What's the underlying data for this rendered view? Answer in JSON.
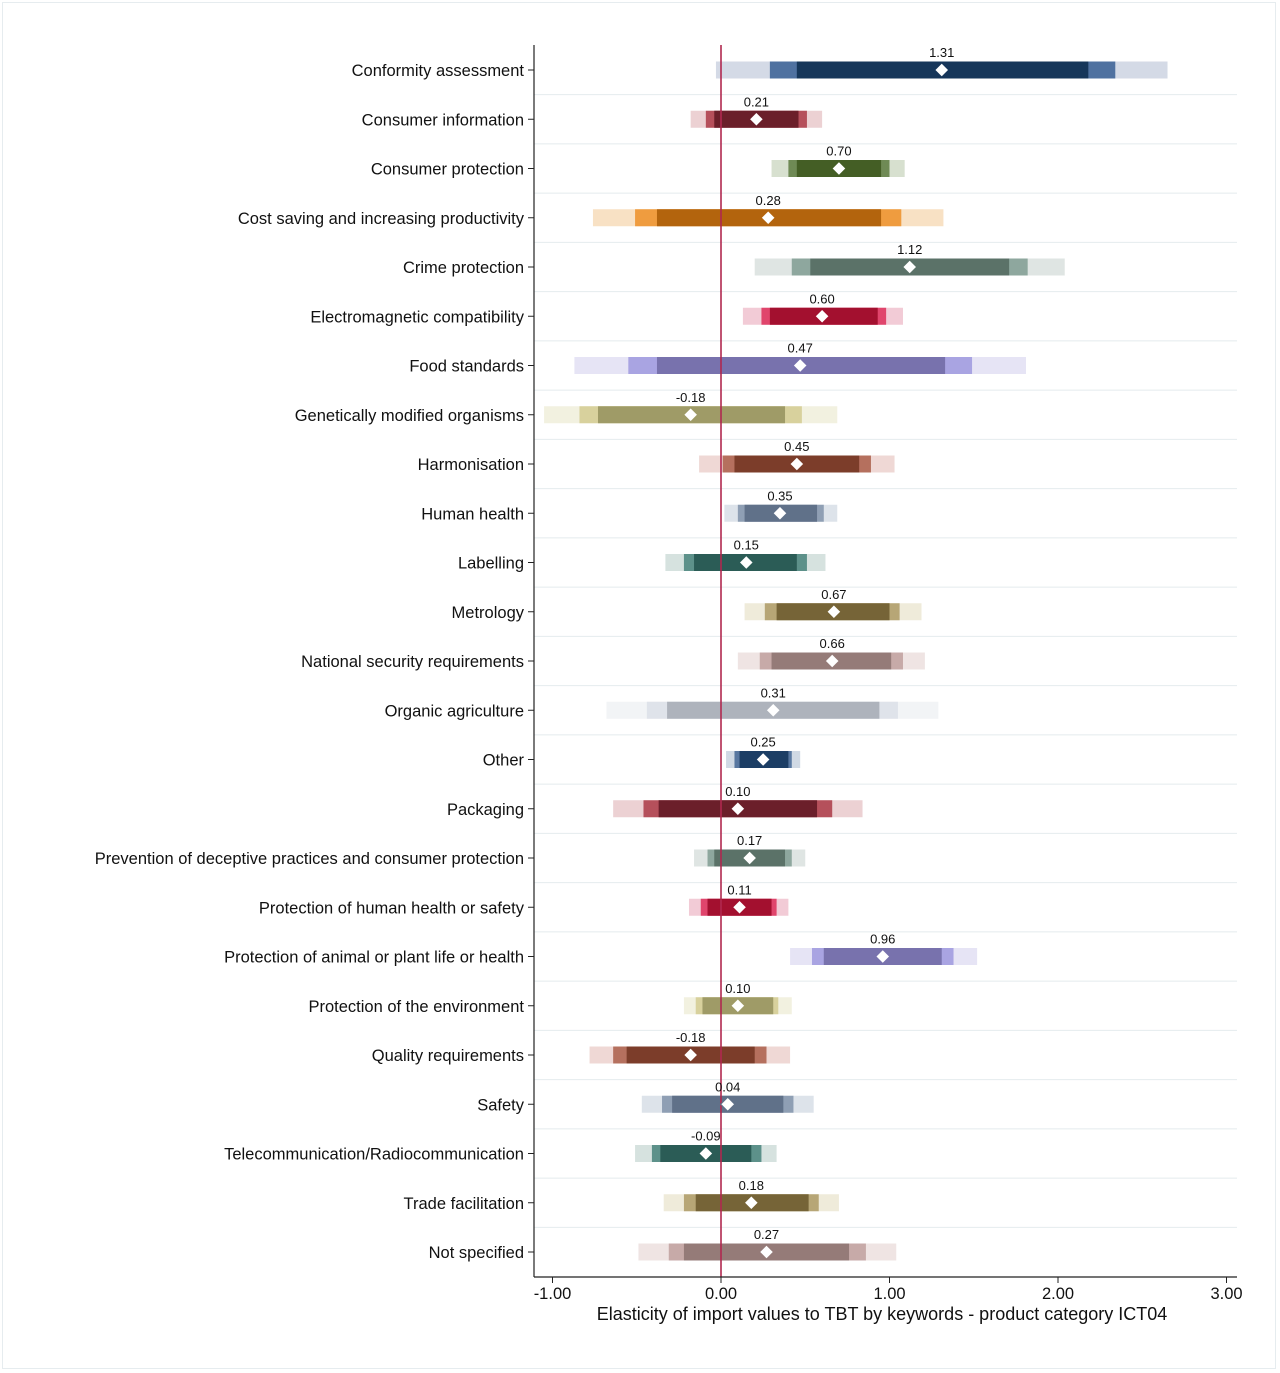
{
  "chart_data": {
    "type": "forest",
    "title": "",
    "xlabel": "Elasticity of import values to TBT by keywords - product category ICT04",
    "ylabel": "",
    "xlim": [
      -1.1,
      3.05
    ],
    "xticks": [
      -1.0,
      0.0,
      1.0,
      2.0,
      3.0
    ],
    "xtick_labels": [
      "-1.00",
      "0.00",
      "1.00",
      "2.00",
      "3.00"
    ],
    "reference_line": 0,
    "reference_line_color": "#b0284f",
    "interval_levels": [
      "outer",
      "middle",
      "inner"
    ],
    "rows": [
      {
        "label": "Conformity assessment",
        "value": 1.31,
        "value_label": "1.31",
        "outer": [
          -0.03,
          2.65
        ],
        "middle": [
          0.29,
          2.34
        ],
        "inner": [
          0.45,
          2.18
        ],
        "colors": [
          "#d4dae6",
          "#4f71a0",
          "#16365a"
        ]
      },
      {
        "label": "Consumer information",
        "value": 0.21,
        "value_label": "0.21",
        "outer": [
          -0.18,
          0.6
        ],
        "middle": [
          -0.09,
          0.51
        ],
        "inner": [
          -0.04,
          0.46
        ],
        "colors": [
          "#ecd1d3",
          "#b5505b",
          "#6b1f2a"
        ]
      },
      {
        "label": "Consumer protection",
        "value": 0.7,
        "value_label": "0.70",
        "outer": [
          0.3,
          1.09
        ],
        "middle": [
          0.4,
          1.0
        ],
        "inner": [
          0.45,
          0.95
        ],
        "colors": [
          "#d7e0cf",
          "#6f8a55",
          "#445e25"
        ]
      },
      {
        "label": "Cost saving and increasing productivity",
        "value": 0.28,
        "value_label": "0.28",
        "outer": [
          -0.76,
          1.32
        ],
        "middle": [
          -0.51,
          1.07
        ],
        "inner": [
          -0.38,
          0.95
        ],
        "colors": [
          "#f8e1c4",
          "#ef9c3f",
          "#b3640d"
        ]
      },
      {
        "label": "Crime protection",
        "value": 1.12,
        "value_label": "1.12",
        "outer": [
          0.2,
          2.04
        ],
        "middle": [
          0.42,
          1.82
        ],
        "inner": [
          0.53,
          1.71
        ],
        "colors": [
          "#dfe5e3",
          "#8ea79e",
          "#5b7268"
        ]
      },
      {
        "label": "Electromagnetic compatibility",
        "value": 0.6,
        "value_label": "0.60",
        "outer": [
          0.13,
          1.08
        ],
        "middle": [
          0.24,
          0.98
        ],
        "inner": [
          0.29,
          0.93
        ],
        "colors": [
          "#f2cbd6",
          "#e0456c",
          "#a3102f"
        ]
      },
      {
        "label": "Food standards",
        "value": 0.47,
        "value_label": "0.47",
        "outer": [
          -0.87,
          1.81
        ],
        "middle": [
          -0.55,
          1.49
        ],
        "inner": [
          -0.38,
          1.33
        ],
        "colors": [
          "#e6e4f5",
          "#a9a4e2",
          "#7872ad"
        ]
      },
      {
        "label": "Genetically modified organisms",
        "value": -0.18,
        "value_label": "-0.18",
        "outer": [
          -1.05,
          0.69
        ],
        "middle": [
          -0.84,
          0.48
        ],
        "inner": [
          -0.73,
          0.38
        ],
        "colors": [
          "#f2f1e0",
          "#d8d19d",
          "#9f9b67"
        ]
      },
      {
        "label": "Harmonisation",
        "value": 0.45,
        "value_label": "0.45",
        "outer": [
          -0.13,
          1.03
        ],
        "middle": [
          0.01,
          0.89
        ],
        "inner": [
          0.08,
          0.82
        ],
        "colors": [
          "#efd8d5",
          "#b5705e",
          "#7c3d2a"
        ]
      },
      {
        "label": "Human health",
        "value": 0.35,
        "value_label": "0.35",
        "outer": [
          0.02,
          0.69
        ],
        "middle": [
          0.1,
          0.61
        ],
        "inner": [
          0.14,
          0.57
        ],
        "colors": [
          "#dde3ea",
          "#8f9fb4",
          "#607189"
        ]
      },
      {
        "label": "Labelling",
        "value": 0.15,
        "value_label": "0.15",
        "outer": [
          -0.33,
          0.62
        ],
        "middle": [
          -0.22,
          0.51
        ],
        "inner": [
          -0.16,
          0.45
        ],
        "colors": [
          "#d6e2df",
          "#5d918a",
          "#2b5c56"
        ]
      },
      {
        "label": "Metrology",
        "value": 0.67,
        "value_label": "0.67",
        "outer": [
          0.14,
          1.19
        ],
        "middle": [
          0.26,
          1.06
        ],
        "inner": [
          0.33,
          1.0
        ],
        "colors": [
          "#efebda",
          "#b7a676",
          "#766437"
        ]
      },
      {
        "label": "National security requirements",
        "value": 0.66,
        "value_label": "0.66",
        "outer": [
          0.1,
          1.21
        ],
        "middle": [
          0.23,
          1.08
        ],
        "inner": [
          0.3,
          1.01
        ],
        "colors": [
          "#efe4e3",
          "#c7aaa8",
          "#957b78"
        ]
      },
      {
        "label": "Organic agriculture",
        "value": 0.31,
        "value_label": "0.31",
        "outer": [
          -0.68,
          1.29
        ],
        "middle": [
          -0.44,
          1.05
        ],
        "inner": [
          -0.32,
          0.94
        ],
        "colors": [
          "#f2f4f6",
          "#dfe3ea",
          "#aeb3bc"
        ]
      },
      {
        "label": "Other",
        "value": 0.25,
        "value_label": "0.25",
        "outer": [
          0.03,
          0.47
        ],
        "middle": [
          0.08,
          0.42
        ],
        "inner": [
          0.11,
          0.4
        ],
        "colors": [
          "#d0d9e4",
          "#5877a0",
          "#1c3e65"
        ]
      },
      {
        "label": "Packaging",
        "value": 0.1,
        "value_label": "0.10",
        "outer": [
          -0.64,
          0.84
        ],
        "middle": [
          -0.46,
          0.66
        ],
        "inner": [
          -0.37,
          0.57
        ],
        "colors": [
          "#ecd1d3",
          "#b5505b",
          "#6b1f2a"
        ]
      },
      {
        "label": "Prevention of deceptive practices and consumer protection",
        "value": 0.17,
        "value_label": "0.17",
        "outer": [
          -0.16,
          0.5
        ],
        "middle": [
          -0.08,
          0.42
        ],
        "inner": [
          -0.04,
          0.38
        ],
        "colors": [
          "#dfe5e3",
          "#8ea79e",
          "#5b7268"
        ]
      },
      {
        "label": "Protection of human health or safety",
        "value": 0.11,
        "value_label": "0.11",
        "outer": [
          -0.19,
          0.4
        ],
        "middle": [
          -0.12,
          0.33
        ],
        "inner": [
          -0.08,
          0.3
        ],
        "colors": [
          "#f2cbd6",
          "#e0456c",
          "#a3102f"
        ]
      },
      {
        "label": "Protection of animal or plant life or health",
        "value": 0.96,
        "value_label": "0.96",
        "outer": [
          0.41,
          1.52
        ],
        "middle": [
          0.54,
          1.38
        ],
        "inner": [
          0.61,
          1.31
        ],
        "colors": [
          "#e6e4f5",
          "#a9a4e2",
          "#7872ad"
        ]
      },
      {
        "label": "Protection of the environment",
        "value": 0.1,
        "value_label": "0.10",
        "outer": [
          -0.22,
          0.42
        ],
        "middle": [
          -0.15,
          0.34
        ],
        "inner": [
          -0.11,
          0.31
        ],
        "colors": [
          "#f2f1e0",
          "#d8d19d",
          "#9f9b67"
        ]
      },
      {
        "label": "Quality requirements",
        "value": -0.18,
        "value_label": "-0.18",
        "outer": [
          -0.78,
          0.41
        ],
        "middle": [
          -0.64,
          0.27
        ],
        "inner": [
          -0.56,
          0.2
        ],
        "colors": [
          "#efd8d5",
          "#b5705e",
          "#7c3d2a"
        ]
      },
      {
        "label": "Safety",
        "value": 0.04,
        "value_label": "0.04",
        "outer": [
          -0.47,
          0.55
        ],
        "middle": [
          -0.35,
          0.43
        ],
        "inner": [
          -0.29,
          0.37
        ],
        "colors": [
          "#dde3ea",
          "#8f9fb4",
          "#607189"
        ]
      },
      {
        "label": "Telecommunication/Radiocommunication",
        "value": -0.09,
        "value_label": "-0.09",
        "outer": [
          -0.51,
          0.33
        ],
        "middle": [
          -0.41,
          0.24
        ],
        "inner": [
          -0.36,
          0.18
        ],
        "colors": [
          "#d6e2df",
          "#5d918a",
          "#2b5c56"
        ]
      },
      {
        "label": "Trade facilitation",
        "value": 0.18,
        "value_label": "0.18",
        "outer": [
          -0.34,
          0.7
        ],
        "middle": [
          -0.22,
          0.58
        ],
        "inner": [
          -0.15,
          0.52
        ],
        "colors": [
          "#efebda",
          "#b7a676",
          "#766437"
        ]
      },
      {
        "label": "Not specified",
        "value": 0.27,
        "value_label": "0.27",
        "outer": [
          -0.49,
          1.04
        ],
        "middle": [
          -0.31,
          0.86
        ],
        "inner": [
          -0.22,
          0.76
        ],
        "colors": [
          "#efe4e3",
          "#c7aaa8",
          "#957b78"
        ]
      }
    ]
  }
}
